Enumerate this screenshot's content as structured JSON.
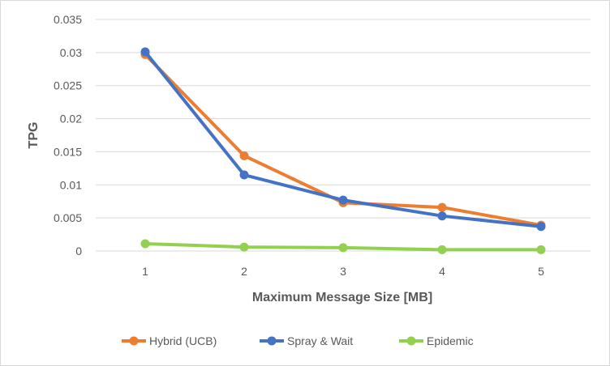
{
  "chart_data": {
    "type": "line",
    "title": "",
    "xlabel": "Maximum Message Size [MB]",
    "ylabel": "TPG",
    "categories": [
      "1",
      "2",
      "3",
      "4",
      "5"
    ],
    "x": [
      1,
      2,
      3,
      4,
      5
    ],
    "ylim": [
      0,
      0.035
    ],
    "yticks": [
      0,
      0.005,
      0.01,
      0.015,
      0.02,
      0.025,
      0.03,
      0.035
    ],
    "ytick_labels": [
      "0",
      "0.005",
      "0.01",
      "0.015",
      "0.02",
      "0.025",
      "0.03",
      "0.035"
    ],
    "grid": "horizontal",
    "legend_position": "bottom",
    "series": [
      {
        "name": "Hybrid (UCB)",
        "color": "#ED7D31",
        "values": [
          0.0297,
          0.0144,
          0.0073,
          0.0066,
          0.0039
        ]
      },
      {
        "name": "Spray & Wait",
        "color": "#4472C4",
        "values": [
          0.0301,
          0.0115,
          0.0077,
          0.0053,
          0.0037
        ]
      },
      {
        "name": "Epidemic",
        "color": "#92D050",
        "values": [
          0.0011,
          0.0006,
          0.0005,
          0.0002,
          0.0002
        ]
      }
    ]
  }
}
